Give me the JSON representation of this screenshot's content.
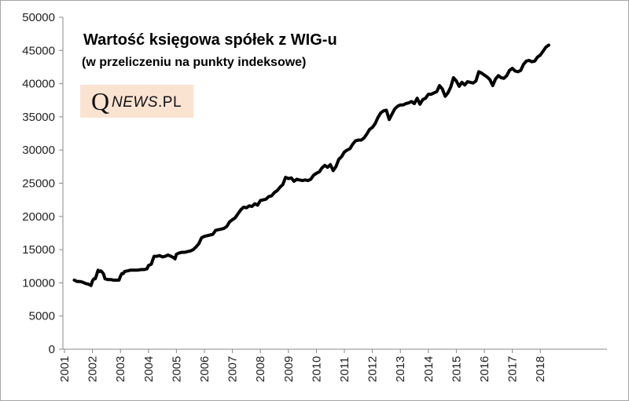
{
  "chart_data": {
    "type": "line",
    "title": "Wartość księgowa spółek z WIG-u",
    "subtitle": "(w przeliczeniu na punkty indeksowe)",
    "watermark": {
      "brand_q": "Q",
      "brand_news": "NEWS",
      "brand_tld": ".PL"
    },
    "xlabel": "",
    "ylabel": "",
    "ylim": [
      0,
      50000
    ],
    "xlim": [
      2001,
      2018.7
    ],
    "y_ticks": [
      "0",
      "5000",
      "10000",
      "15000",
      "20000",
      "25000",
      "30000",
      "35000",
      "40000",
      "45000",
      "50000"
    ],
    "x_ticks": [
      "2001",
      "2002",
      "2003",
      "2004",
      "2005",
      "2006",
      "2007",
      "2008",
      "2009",
      "2010",
      "2011",
      "2012",
      "2013",
      "2014",
      "2015",
      "2016",
      "2017",
      "2018"
    ],
    "grid": false,
    "legend": "none",
    "line_color": "#000000",
    "series": [
      {
        "x": [
          2001.35,
          2001.45,
          2001.55,
          2001.65,
          2001.75,
          2001.85,
          2001.95,
          2002.0,
          2002.05,
          2002.1,
          2002.15,
          2002.2,
          2002.25,
          2002.3,
          2002.35,
          2002.4,
          2002.45,
          2002.55,
          2002.65,
          2002.75,
          2002.85,
          2002.95,
          2003.0,
          2003.05,
          2003.1,
          2003.15,
          2003.25,
          2003.35,
          2003.45,
          2003.6,
          2003.75,
          2003.85,
          2003.95,
          2004.0,
          2004.05,
          2004.1,
          2004.2,
          2004.3,
          2004.4,
          2004.5,
          2004.6,
          2004.7,
          2004.8,
          2004.9,
          2004.95,
          2005.0,
          2005.1,
          2005.2,
          2005.3,
          2005.4,
          2005.5,
          2005.6,
          2005.7,
          2005.8,
          2005.9,
          2006.0,
          2006.1,
          2006.2,
          2006.3,
          2006.4,
          2006.5,
          2006.6,
          2006.7,
          2006.8,
          2006.9,
          2007.0,
          2007.1,
          2007.2,
          2007.3,
          2007.4,
          2007.5,
          2007.6,
          2007.7,
          2007.8,
          2007.9,
          2008.0,
          2008.1,
          2008.2,
          2008.3,
          2008.4,
          2008.5,
          2008.6,
          2008.7,
          2008.8,
          2008.9,
          2009.0,
          2009.1,
          2009.2,
          2009.3,
          2009.4,
          2009.5,
          2009.6,
          2009.7,
          2009.8,
          2009.9,
          2010.0,
          2010.1,
          2010.2,
          2010.3,
          2010.4,
          2010.5,
          2010.6,
          2010.7,
          2010.8,
          2010.9,
          2011.0,
          2011.1,
          2011.2,
          2011.3,
          2011.4,
          2011.5,
          2011.6,
          2011.7,
          2011.8,
          2011.9,
          2012.0,
          2012.1,
          2012.2,
          2012.3,
          2012.4,
          2012.5,
          2012.6,
          2012.7,
          2012.8,
          2012.9,
          2013.0,
          2013.1,
          2013.2,
          2013.3,
          2013.4,
          2013.5,
          2013.6,
          2013.7,
          2013.8,
          2013.9,
          2014.0,
          2014.1,
          2014.2,
          2014.3,
          2014.4,
          2014.5,
          2014.6,
          2014.7,
          2014.8,
          2014.9,
          2015.0,
          2015.1,
          2015.2,
          2015.3,
          2015.4,
          2015.5,
          2015.6,
          2015.7,
          2015.8,
          2015.9,
          2016.0,
          2016.1,
          2016.2,
          2016.3,
          2016.4,
          2016.5,
          2016.6,
          2016.7,
          2016.8,
          2016.9,
          2017.0,
          2017.1,
          2017.2,
          2017.3,
          2017.4,
          2017.5,
          2017.6,
          2017.7,
          2017.8,
          2017.9,
          2018.0,
          2018.1,
          2018.2,
          2018.3
        ],
        "y": [
          10400,
          10200,
          10200,
          10100,
          9900,
          9800,
          9600,
          10300,
          10600,
          10600,
          11200,
          11900,
          11700,
          11800,
          11600,
          11300,
          10600,
          10500,
          10500,
          10400,
          10400,
          10400,
          11000,
          11400,
          11400,
          11700,
          11800,
          11900,
          11900,
          11900,
          12000,
          12000,
          12100,
          12600,
          12700,
          12800,
          14000,
          14000,
          14100,
          13900,
          14000,
          14200,
          14000,
          13800,
          13600,
          14300,
          14500,
          14600,
          14600,
          14700,
          14800,
          15000,
          15400,
          15900,
          16800,
          17000,
          17100,
          17200,
          17300,
          17900,
          18000,
          18100,
          18200,
          18500,
          19200,
          19500,
          19800,
          20400,
          21000,
          21400,
          21300,
          21600,
          21500,
          21900,
          21700,
          22400,
          22500,
          22600,
          23000,
          23100,
          23600,
          23900,
          24400,
          24800,
          25900,
          25700,
          25800,
          25300,
          25600,
          25500,
          25400,
          25500,
          25400,
          25600,
          26200,
          26500,
          26700,
          27300,
          27700,
          27400,
          27800,
          26900,
          27500,
          28600,
          29000,
          29700,
          30000,
          30200,
          30900,
          31400,
          31500,
          31500,
          31800,
          32400,
          33100,
          33400,
          34000,
          34900,
          35600,
          35900,
          36000,
          34600,
          35400,
          36200,
          36600,
          36800,
          36800,
          37000,
          37100,
          37300,
          37000,
          37800,
          36900,
          37600,
          37800,
          38400,
          38400,
          38600,
          38800,
          39700,
          39200,
          38100,
          38600,
          39500,
          40900,
          40400,
          39600,
          40200,
          39800,
          40300,
          40200,
          40100,
          40400,
          41800,
          41600,
          41300,
          41000,
          40600,
          39700,
          40700,
          41200,
          40900,
          40800,
          41200,
          42000,
          42300,
          41900,
          41800,
          42000,
          42900,
          43400,
          43500,
          43300,
          43400,
          44000,
          44300,
          44900,
          45500,
          45800
        ]
      }
    ]
  }
}
